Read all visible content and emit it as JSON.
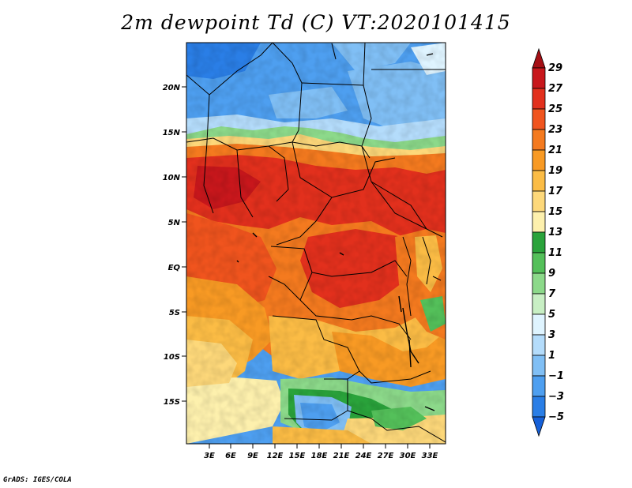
{
  "title": "2m dewpoint Td (C) VT:2020101415",
  "footer": "GrADS: IGES/COLA",
  "map": {
    "variable": "2m dewpoint Td",
    "units": "C",
    "valid_time": "2020101415",
    "lat_ticks": [
      "20N",
      "15N",
      "10N",
      "5N",
      "EQ",
      "5S",
      "10S",
      "15S"
    ],
    "lon_ticks": [
      "3E",
      "6E",
      "9E",
      "12E",
      "15E",
      "18E",
      "21E",
      "24E",
      "27E",
      "30E",
      "33E"
    ]
  },
  "colorbar": {
    "labels": [
      "29",
      "27",
      "25",
      "23",
      "21",
      "19",
      "17",
      "15",
      "13",
      "11",
      "9",
      "7",
      "5",
      "3",
      "1",
      "−1",
      "−3",
      "−5"
    ],
    "colors": [
      "#a50f15",
      "#c8171c",
      "#e2301d",
      "#f0541e",
      "#f47a1f",
      "#f89a24",
      "#fbbc45",
      "#fdd87a",
      "#fdf0ad",
      "#2aa33b",
      "#54c05a",
      "#8cd98a",
      "#c8efc4",
      "#dff4ff",
      "#b4dcfb",
      "#80bff5",
      "#4e9ff0",
      "#2a7ee6",
      "#1660d8"
    ]
  }
}
